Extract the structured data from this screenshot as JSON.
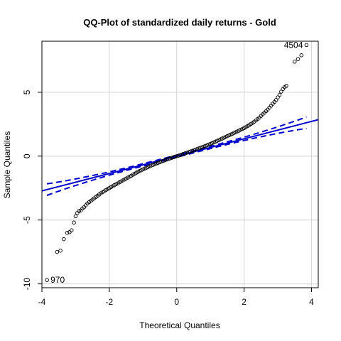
{
  "chart_data": {
    "type": "scatter",
    "title": "QQ-Plot of standardized daily returns - Gold",
    "xlabel": "Theoretical Quantiles",
    "ylabel": "Sample Quantiles",
    "xlim": [
      -4.0,
      4.2
    ],
    "ylim": [
      -10.3,
      9.0
    ],
    "x_ticks": [
      -4,
      -2,
      0,
      2,
      4
    ],
    "y_ticks": [
      -10,
      -5,
      0,
      5
    ],
    "grid": true,
    "reference_line": {
      "slope": 0.68,
      "intercept": 0.0,
      "color": "#0000cd"
    },
    "confidence_band": {
      "style": "dashed",
      "color": "#0000cd",
      "x_range": [
        -3.85,
        3.85
      ],
      "half_width_at_ends": 0.45
    },
    "labeled_points": [
      {
        "label": "970",
        "x": -3.85,
        "y": -9.7
      },
      {
        "label": "4504",
        "x": 3.85,
        "y": 8.7
      }
    ],
    "points": [
      [
        -3.85,
        -9.7
      ],
      [
        -3.55,
        -7.5
      ],
      [
        -3.45,
        -7.4
      ],
      [
        -3.35,
        -6.5
      ],
      [
        -3.25,
        -6.0
      ],
      [
        -3.18,
        -5.95
      ],
      [
        -3.12,
        -5.8
      ],
      [
        -3.05,
        -5.2
      ],
      [
        -3.0,
        -4.7
      ],
      [
        -2.95,
        -4.45
      ],
      [
        -2.9,
        -4.3
      ],
      [
        -2.85,
        -4.25
      ],
      [
        -2.8,
        -4.1
      ],
      [
        -2.75,
        -4.0
      ],
      [
        -2.7,
        -3.85
      ],
      [
        -2.65,
        -3.7
      ],
      [
        -2.6,
        -3.6
      ],
      [
        -2.55,
        -3.5
      ],
      [
        -2.5,
        -3.4
      ],
      [
        -2.45,
        -3.3
      ],
      [
        -2.4,
        -3.2
      ],
      [
        -2.35,
        -3.1
      ],
      [
        -2.3,
        -3.0
      ],
      [
        -2.25,
        -2.9
      ],
      [
        -2.2,
        -2.82
      ],
      [
        -2.15,
        -2.74
      ],
      [
        -2.1,
        -2.65
      ],
      [
        -2.05,
        -2.57
      ],
      [
        -2.0,
        -2.5
      ],
      [
        -1.95,
        -2.42
      ],
      [
        -1.9,
        -2.35
      ],
      [
        -1.85,
        -2.27
      ],
      [
        -1.8,
        -2.2
      ],
      [
        -1.75,
        -2.13
      ],
      [
        -1.7,
        -2.05
      ],
      [
        -1.65,
        -1.98
      ],
      [
        -1.6,
        -1.9
      ],
      [
        -1.55,
        -1.83
      ],
      [
        -1.5,
        -1.75
      ],
      [
        -1.45,
        -1.68
      ],
      [
        -1.4,
        -1.6
      ],
      [
        -1.35,
        -1.53
      ],
      [
        -1.3,
        -1.45
      ],
      [
        -1.25,
        -1.38
      ],
      [
        -1.2,
        -1.3
      ],
      [
        -1.15,
        -1.23
      ],
      [
        -1.1,
        -1.16
      ],
      [
        -1.05,
        -1.1
      ],
      [
        -1.0,
        -1.03
      ],
      [
        -0.95,
        -0.97
      ],
      [
        -0.9,
        -0.91
      ],
      [
        -0.85,
        -0.85
      ],
      [
        -0.8,
        -0.79
      ],
      [
        -0.75,
        -0.73
      ],
      [
        -0.7,
        -0.68
      ],
      [
        -0.65,
        -0.62
      ],
      [
        -0.6,
        -0.57
      ],
      [
        -0.55,
        -0.52
      ],
      [
        -0.5,
        -0.47
      ],
      [
        -0.45,
        -0.42
      ],
      [
        -0.4,
        -0.37
      ],
      [
        -0.35,
        -0.32
      ],
      [
        -0.3,
        -0.27
      ],
      [
        -0.25,
        -0.22
      ],
      [
        -0.2,
        -0.18
      ],
      [
        -0.15,
        -0.13
      ],
      [
        -0.1,
        -0.09
      ],
      [
        -0.05,
        -0.04
      ],
      [
        0.0,
        0.0
      ],
      [
        0.05,
        0.04
      ],
      [
        0.1,
        0.09
      ],
      [
        0.15,
        0.13
      ],
      [
        0.2,
        0.18
      ],
      [
        0.25,
        0.22
      ],
      [
        0.3,
        0.27
      ],
      [
        0.35,
        0.31
      ],
      [
        0.4,
        0.36
      ],
      [
        0.45,
        0.41
      ],
      [
        0.5,
        0.45
      ],
      [
        0.55,
        0.5
      ],
      [
        0.6,
        0.55
      ],
      [
        0.65,
        0.6
      ],
      [
        0.7,
        0.65
      ],
      [
        0.75,
        0.7
      ],
      [
        0.8,
        0.75
      ],
      [
        0.85,
        0.8
      ],
      [
        0.9,
        0.85
      ],
      [
        0.95,
        0.91
      ],
      [
        1.0,
        0.96
      ],
      [
        1.05,
        1.02
      ],
      [
        1.1,
        1.08
      ],
      [
        1.15,
        1.14
      ],
      [
        1.2,
        1.2
      ],
      [
        1.25,
        1.26
      ],
      [
        1.3,
        1.32
      ],
      [
        1.35,
        1.38
      ],
      [
        1.4,
        1.44
      ],
      [
        1.45,
        1.5
      ],
      [
        1.5,
        1.57
      ],
      [
        1.55,
        1.63
      ],
      [
        1.6,
        1.69
      ],
      [
        1.65,
        1.75
      ],
      [
        1.7,
        1.82
      ],
      [
        1.75,
        1.88
      ],
      [
        1.8,
        1.94
      ],
      [
        1.85,
        2.0
      ],
      [
        1.9,
        2.07
      ],
      [
        1.95,
        2.13
      ],
      [
        2.0,
        2.2
      ],
      [
        2.05,
        2.27
      ],
      [
        2.1,
        2.35
      ],
      [
        2.15,
        2.43
      ],
      [
        2.2,
        2.52
      ],
      [
        2.25,
        2.6
      ],
      [
        2.3,
        2.7
      ],
      [
        2.35,
        2.8
      ],
      [
        2.4,
        2.9
      ],
      [
        2.45,
        3.02
      ],
      [
        2.5,
        3.15
      ],
      [
        2.55,
        3.28
      ],
      [
        2.6,
        3.4
      ],
      [
        2.65,
        3.52
      ],
      [
        2.7,
        3.65
      ],
      [
        2.75,
        3.8
      ],
      [
        2.8,
        3.95
      ],
      [
        2.85,
        4.1
      ],
      [
        2.9,
        4.25
      ],
      [
        2.95,
        4.4
      ],
      [
        3.0,
        4.6
      ],
      [
        3.05,
        4.8
      ],
      [
        3.1,
        5.05
      ],
      [
        3.15,
        5.25
      ],
      [
        3.2,
        5.4
      ],
      [
        3.25,
        5.5
      ],
      [
        3.5,
        7.4
      ],
      [
        3.6,
        7.6
      ],
      [
        3.7,
        7.9
      ],
      [
        3.85,
        8.7
      ]
    ]
  }
}
